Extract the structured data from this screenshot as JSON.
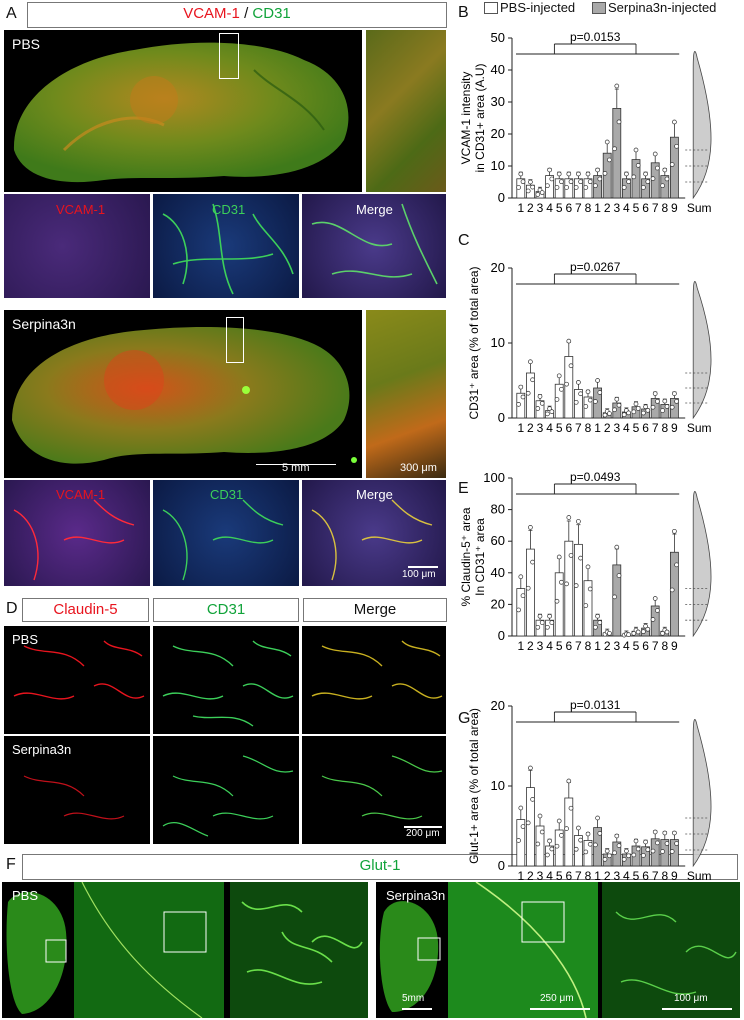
{
  "panel_letters": {
    "A": "A",
    "B": "B",
    "C": "C",
    "D": "D",
    "E": "E",
    "F": "F",
    "G": "G"
  },
  "panelA": {
    "title_red": "VCAM-1",
    "title_sep": " / ",
    "title_green": "CD31",
    "top_label": "PBS",
    "bottom_label": "Serpina3n",
    "channel_labels": [
      "VCAM-1",
      "CD31",
      "Merge"
    ],
    "scale_5mm": "5 mm",
    "scale_300um": "300 μm",
    "scale_100um": "100 μm"
  },
  "panelD": {
    "headers": [
      "Claudin-5",
      "CD31",
      "Merge"
    ],
    "row_labels": [
      "PBS",
      "Serpina3n"
    ],
    "scale_200um": "200 μm"
  },
  "panelF": {
    "title": "Glut-1",
    "left_label": "PBS",
    "right_label": "Serpina3n",
    "scale_5mm": "5mm",
    "scale_250um": "250 μm",
    "scale_100um": "100 μm"
  },
  "legend": {
    "pbs": "PBS-injected",
    "serp": "Serpina3n-injected"
  },
  "colors": {
    "red": "#e8141e",
    "green": "#11a33a",
    "pbs_bar": "#ffffff",
    "serp_bar": "#a9a9a9"
  },
  "chart_data": [
    {
      "id": "B",
      "type": "bar",
      "ylabel": "VCAM-1 intensity\nin CD31+ area (A.U)",
      "ylim": [
        0,
        50
      ],
      "yticks": [
        0,
        10,
        20,
        30,
        40,
        50
      ],
      "pvalue": "p=0.0153",
      "series": [
        {
          "name": "PBS-injected",
          "categories": [
            "1",
            "2",
            "3",
            "4",
            "5",
            "6",
            "7",
            "8"
          ],
          "values": [
            6,
            4,
            2,
            7,
            6,
            6,
            6,
            6
          ]
        },
        {
          "name": "Serpina3n-injected",
          "categories": [
            "1",
            "2",
            "3",
            "4",
            "5",
            "6",
            "7",
            "8",
            "9"
          ],
          "values": [
            7,
            14,
            28,
            6,
            12,
            6,
            11,
            7,
            19
          ]
        }
      ],
      "sum_label": "Sum"
    },
    {
      "id": "C",
      "type": "bar",
      "ylabel": "CD31⁺ area (% of total area)",
      "ylim": [
        0,
        20
      ],
      "yticks": [
        0,
        10,
        20
      ],
      "pvalue": "p=0.0267",
      "series": [
        {
          "name": "PBS-injected",
          "categories": [
            "1",
            "2",
            "3",
            "4",
            "5",
            "6",
            "7",
            "8"
          ],
          "values": [
            3.3,
            6.0,
            2.3,
            1.0,
            4.5,
            8.2,
            3.8,
            2.8
          ]
        },
        {
          "name": "Serpina3n-injected",
          "categories": [
            "1",
            "2",
            "3",
            "4",
            "5",
            "6",
            "7",
            "8",
            "9"
          ],
          "values": [
            4.0,
            0.7,
            2.0,
            0.8,
            1.5,
            1.2,
            2.6,
            1.8,
            2.6
          ]
        }
      ],
      "sum_label": "Sum"
    },
    {
      "id": "E",
      "type": "bar",
      "ylabel": "% Claudin-5⁺ area\nIn CD31⁺ area",
      "ylim": [
        0,
        100
      ],
      "yticks": [
        0,
        20,
        40,
        60,
        80,
        100
      ],
      "pvalue": "p=0.0493",
      "series": [
        {
          "name": "PBS-injected",
          "categories": [
            "1",
            "2",
            "3",
            "4",
            "5",
            "6",
            "7",
            "8"
          ],
          "values": [
            30,
            55,
            10,
            10,
            40,
            60,
            58,
            35
          ]
        },
        {
          "name": "Serpina3n-injected",
          "categories": [
            "1",
            "2",
            "3",
            "4",
            "5",
            "6",
            "7",
            "8",
            "9"
          ],
          "values": [
            10,
            2,
            45,
            1,
            3,
            5,
            19,
            3,
            53
          ]
        }
      ],
      "sum_label": ""
    },
    {
      "id": "G",
      "type": "bar",
      "ylabel": "Glut-1+ area (% of total area)",
      "ylim": [
        0,
        20
      ],
      "yticks": [
        0,
        10,
        20
      ],
      "pvalue": "p=0.0131",
      "series": [
        {
          "name": "PBS-injected",
          "categories": [
            "1",
            "2",
            "3",
            "4",
            "5",
            "6",
            "7",
            "8"
          ],
          "values": [
            5.8,
            9.8,
            5.0,
            2.5,
            4.5,
            8.5,
            3.8,
            3.2
          ]
        },
        {
          "name": "Serpina3n-injected",
          "categories": [
            "1",
            "2",
            "3",
            "4",
            "5",
            "6",
            "7",
            "8",
            "9"
          ],
          "values": [
            4.8,
            1.5,
            3.0,
            1.5,
            2.5,
            2.4,
            3.4,
            3.3,
            3.3
          ]
        }
      ],
      "sum_label": "Sum"
    }
  ]
}
